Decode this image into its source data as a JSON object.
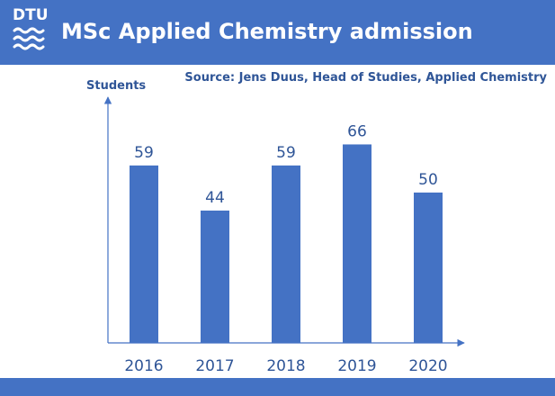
{
  "header": {
    "logo_text": "DTU",
    "title": "MSc Applied Chemistry admission"
  },
  "source": "Source: Jens Duus, Head of Studies, Applied Chemistry",
  "colors": {
    "band": "#4472c4",
    "bar": "#4472c4",
    "text": "#2f5597",
    "axis": "#4472c4"
  },
  "chart_data": {
    "type": "bar",
    "title": "MSc Applied Chemistry admission",
    "ylabel": "Students",
    "xlabel": "",
    "categories": [
      "2016",
      "2017",
      "2018",
      "2019",
      "2020"
    ],
    "values": [
      59,
      44,
      59,
      66,
      50
    ],
    "ylim": [
      0,
      82
    ],
    "grid": false,
    "legend": "none",
    "data_labels": true
  }
}
